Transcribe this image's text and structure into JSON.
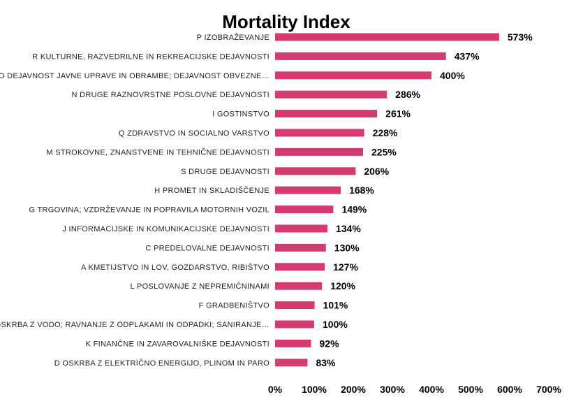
{
  "chart_data": {
    "type": "bar",
    "orientation": "horizontal",
    "title": "Mortality Index",
    "xlabel": "",
    "ylabel": "",
    "xlim": [
      0,
      700
    ],
    "x_ticks": [
      "0%",
      "100%",
      "200%",
      "300%",
      "400%",
      "500%",
      "600%",
      "700%"
    ],
    "bar_color": "#d63b6e",
    "grid": false,
    "legend": "none",
    "categories": [
      "P IZOBRAŽEVANJE",
      "R KULTURNE, RAZVEDRILNE IN REKREACIJSKE DEJAVNOSTI",
      "O DEJAVNOST JAVNE UPRAVE IN OBRAMBE; DEJAVNOST OBVEZNE…",
      "N DRUGE RAZNOVRSTNE POSLOVNE DEJAVNOSTI",
      "I GOSTINSTVO",
      "Q ZDRAVSTVO IN SOCIALNO VARSTVO",
      "M STROKOVNE, ZNANSTVENE IN TEHNIČNE DEJAVNOSTI",
      "S DRUGE DEJAVNOSTI",
      "H PROMET IN SKLADIŠČENJE",
      "G TRGOVINA; VZDRŽEVANJE IN POPRAVILA MOTORNIH VOZIL",
      "J INFORMACIJSKE IN KOMUNIKACIJSKE DEJAVNOSTI",
      "C PREDELOVALNE DEJAVNOSTI",
      "A KMETIJSTVO IN LOV, GOZDARSTVO, RIBIŠTVO",
      "L POSLOVANJE Z NEPREMIČNINAMI",
      "F GRADBENIŠTVO",
      "E OSKRBA Z VODO; RAVNANJE Z ODPLAKAMI IN ODPADKI; SANIRANJE…",
      "K FINANČNE IN ZAVAROVALNIŠKE DEJAVNOSTI",
      "D OSKRBA Z ELEKTRIČNO ENERGIJO, PLINOM IN PARO"
    ],
    "values": [
      573,
      437,
      400,
      286,
      261,
      228,
      225,
      206,
      168,
      149,
      134,
      130,
      127,
      120,
      101,
      100,
      92,
      83
    ],
    "value_labels": [
      "573%",
      "437%",
      "400%",
      "286%",
      "261%",
      "228%",
      "225%",
      "206%",
      "168%",
      "149%",
      "134%",
      "130%",
      "127%",
      "120%",
      "101%",
      "100%",
      "92%",
      "83%"
    ]
  }
}
